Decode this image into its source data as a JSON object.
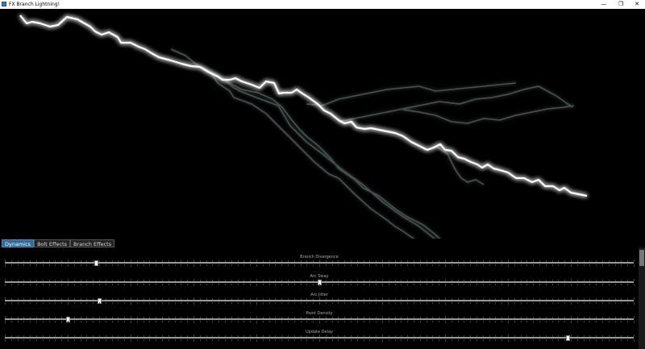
{
  "window": {
    "title": "FX Branch Lightning!",
    "minimize": "—",
    "maximize": "❐",
    "close": "✕"
  },
  "tabs": [
    "Dynamics",
    "Bolt Effects",
    "Branch Effects"
  ],
  "active_tab": 0,
  "sliders": [
    {
      "label": "Branch Divergence",
      "value": 0.145
    },
    {
      "label": "Arc Sway",
      "value": 0.5
    },
    {
      "label": "Arc Jitter",
      "value": 0.15
    },
    {
      "label": "Point Density",
      "value": 0.1
    },
    {
      "label": "Update Delay",
      "value": 0.895
    }
  ],
  "colors": {
    "background": "#000000",
    "bolt": "#ffffff",
    "accent_tab": "#2b6a99"
  }
}
